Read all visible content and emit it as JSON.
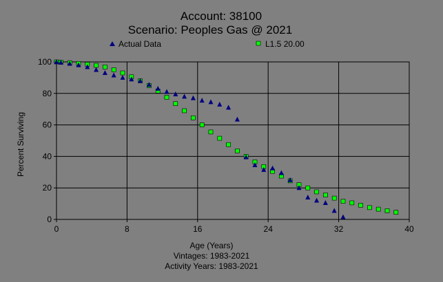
{
  "chart_data": {
    "type": "scatter",
    "title": "Account: 38100",
    "subtitle": "Scenario: Peoples Gas @ 2021",
    "xlabel": "Age (Years)",
    "ylabel": "Percent Surviving",
    "footnotes": [
      "Vintages: 1983-2021",
      "Activity Years: 1983-2021"
    ],
    "xlim": [
      0,
      40
    ],
    "ylim": [
      0,
      100
    ],
    "xticks": [
      "0",
      "8",
      "16",
      "24",
      "32",
      "40"
    ],
    "yticks": [
      "0",
      "20",
      "40",
      "60",
      "80",
      "100"
    ],
    "grid": true,
    "legend_placement": "top",
    "series": [
      {
        "name": "Actual Data",
        "marker": "triangle",
        "color": "#000080",
        "x": [
          0,
          0.5,
          1.5,
          2.5,
          3.5,
          4.5,
          5.5,
          6.5,
          7.5,
          8.5,
          9.5,
          10.5,
          11.5,
          12.5,
          13.5,
          14.5,
          15.5,
          16.5,
          17.5,
          18.5,
          19.5,
          20.5,
          21.5,
          22.5,
          23.5,
          24.5,
          25.5,
          26.5,
          27.5,
          28.5,
          29.5,
          30.5,
          31.5,
          32.5
        ],
        "y": [
          100,
          99.6,
          98.9,
          98,
          96.8,
          95,
          93,
          91.5,
          90,
          89,
          88,
          85.5,
          83,
          81,
          79.5,
          78,
          77,
          75.5,
          74.5,
          73,
          71,
          63.5,
          39.5,
          34.5,
          31.5,
          32.5,
          29.5,
          25,
          20,
          14,
          12,
          10.5,
          5.5,
          1.5
        ]
      },
      {
        "name": "L1.5 20.00",
        "marker": "square",
        "color": "#00FF00",
        "x": [
          0,
          0.5,
          1.5,
          2.5,
          3.5,
          4.5,
          5.5,
          6.5,
          7.5,
          8.5,
          9.5,
          10.5,
          11.5,
          12.5,
          13.5,
          14.5,
          15.5,
          16.5,
          17.5,
          18.5,
          19.5,
          20.5,
          21.5,
          22.5,
          23.5,
          24.5,
          25.5,
          26.5,
          27.5,
          28.5,
          29.5,
          30.5,
          31.5,
          32.5,
          33.5,
          34.5,
          35.5,
          36.5,
          37.5,
          38.5
        ],
        "y": [
          100,
          99.8,
          99.5,
          99,
          98.5,
          97.8,
          96.8,
          95,
          93,
          90.5,
          88,
          85,
          81.5,
          77.5,
          73.5,
          69,
          64.5,
          60,
          55.5,
          51.5,
          47.5,
          43.5,
          40,
          36.5,
          33.5,
          30.5,
          27.5,
          24.5,
          22,
          20,
          17.5,
          15.5,
          13.5,
          11.5,
          10.5,
          9,
          7.5,
          6.5,
          5.5,
          4.5
        ]
      }
    ]
  }
}
